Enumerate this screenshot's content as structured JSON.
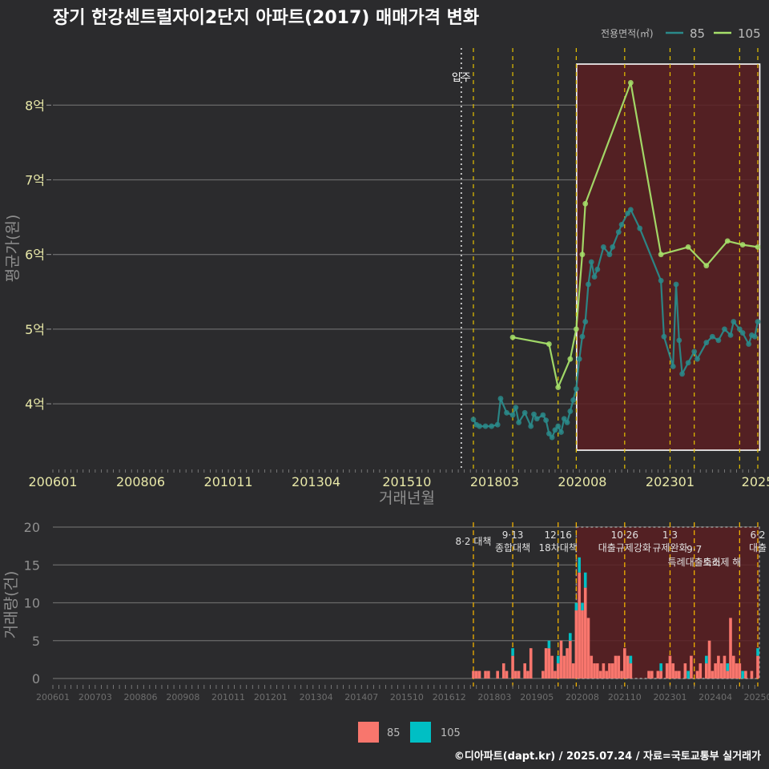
{
  "title": "장기 한강센트럴자이2단지 아파트(2017) 매매가격 변화",
  "credit": "©디아파트(dapt.kr) / 2025.07.24 / 자료=국토교통부 실거래가",
  "colors": {
    "background": "#2b2b2d",
    "s85_line": "#2a8a8a",
    "s105_line": "#a6e06a",
    "bar85": "#f8766d",
    "bar105": "#00bfc4",
    "policy": "#e6c200",
    "highlight": "#5a1e22"
  },
  "chart_data": [
    {
      "type": "line",
      "title": "장기 한강센트럴자이2단지 아파트(2017) 매매가격 변화",
      "xlabel": "거래년월",
      "ylabel": "평균가(원)",
      "x_ticks": [
        "200601",
        "200806",
        "201011",
        "201304",
        "201510",
        "201803",
        "202008",
        "202301",
        "2025"
      ],
      "y_ticks": [
        "4억",
        "5억",
        "6억",
        "7억",
        "8억"
      ],
      "ylim_eok": [
        3.1,
        8.7
      ],
      "xlim": [
        "2006-01",
        "2025-06"
      ],
      "legend_title": "전용면적(㎡)",
      "legend_position": "top-right",
      "move_in": {
        "label": "입주",
        "x": "2017-04"
      },
      "highlight_range": [
        "2020-06",
        "2025-06"
      ],
      "policy_dates": [
        "2017-08",
        "2018-09",
        "2019-12",
        "2020-06",
        "2021-10",
        "2023-01",
        "2023-09",
        "2024-12",
        "2025-06"
      ],
      "series": [
        {
          "name": "85",
          "points": [
            [
              "2017-08",
              3.79
            ],
            [
              "2017-09",
              3.72
            ],
            [
              "2017-10",
              3.7
            ],
            [
              "2017-12",
              3.7
            ],
            [
              "2018-02",
              3.7
            ],
            [
              "2018-04",
              3.72
            ],
            [
              "2018-05",
              4.07
            ],
            [
              "2018-07",
              3.88
            ],
            [
              "2018-09",
              3.85
            ],
            [
              "2018-10",
              3.95
            ],
            [
              "2018-11",
              3.75
            ],
            [
              "2019-01",
              3.88
            ],
            [
              "2019-03",
              3.7
            ],
            [
              "2019-04",
              3.86
            ],
            [
              "2019-05",
              3.8
            ],
            [
              "2019-07",
              3.85
            ],
            [
              "2019-08",
              3.78
            ],
            [
              "2019-09",
              3.6
            ],
            [
              "2019-10",
              3.55
            ],
            [
              "2019-11",
              3.65
            ],
            [
              "2019-12",
              3.7
            ],
            [
              "2020-01",
              3.62
            ],
            [
              "2020-02",
              3.8
            ],
            [
              "2020-03",
              3.75
            ],
            [
              "2020-04",
              3.9
            ],
            [
              "2020-05",
              4.05
            ],
            [
              "2020-06",
              4.2
            ],
            [
              "2020-07",
              4.6
            ],
            [
              "2020-08",
              4.9
            ],
            [
              "2020-09",
              5.1
            ],
            [
              "2020-10",
              5.6
            ],
            [
              "2020-11",
              5.9
            ],
            [
              "2020-12",
              5.7
            ],
            [
              "2021-01",
              5.8
            ],
            [
              "2021-03",
              6.1
            ],
            [
              "2021-05",
              6.0
            ],
            [
              "2021-06",
              6.1
            ],
            [
              "2021-08",
              6.3
            ],
            [
              "2021-09",
              6.4
            ],
            [
              "2021-11",
              6.55
            ],
            [
              "2021-12",
              6.6
            ],
            [
              "2022-03",
              6.35
            ],
            [
              "2022-10",
              5.65
            ],
            [
              "2022-11",
              4.9
            ],
            [
              "2023-02",
              4.5
            ],
            [
              "2023-03",
              5.6
            ],
            [
              "2023-04",
              4.85
            ],
            [
              "2023-05",
              4.4
            ],
            [
              "2023-07",
              4.55
            ],
            [
              "2023-09",
              4.7
            ],
            [
              "2023-10",
              4.6
            ],
            [
              "2024-01",
              4.82
            ],
            [
              "2024-03",
              4.9
            ],
            [
              "2024-05",
              4.85
            ],
            [
              "2024-07",
              5.0
            ],
            [
              "2024-09",
              4.92
            ],
            [
              "2024-10",
              5.1
            ],
            [
              "2024-12",
              5.0
            ],
            [
              "2025-01",
              4.95
            ],
            [
              "2025-03",
              4.8
            ],
            [
              "2025-04",
              4.92
            ],
            [
              "2025-05",
              4.9
            ],
            [
              "2025-06",
              5.1
            ]
          ]
        },
        {
          "name": "105",
          "points": [
            [
              "2018-09",
              4.89
            ],
            [
              "2019-09",
              4.8
            ],
            [
              "2019-12",
              4.22
            ],
            [
              "2020-04",
              4.6
            ],
            [
              "2020-06",
              5.0
            ],
            [
              "2020-08",
              6.0
            ],
            [
              "2020-09",
              6.68
            ],
            [
              "2021-12",
              8.3
            ],
            [
              "2022-10",
              6.0
            ],
            [
              "2023-07",
              6.1
            ],
            [
              "2024-01",
              5.85
            ],
            [
              "2024-08",
              6.18
            ],
            [
              "2025-01",
              6.13
            ],
            [
              "2025-06",
              6.1
            ]
          ]
        }
      ]
    },
    {
      "type": "bar",
      "ylabel": "거래량(건)",
      "ylim": [
        0,
        20
      ],
      "y_ticks": [
        "0",
        "5",
        "10",
        "15",
        "20"
      ],
      "x_ticks": [
        "200601",
        "200703",
        "200806",
        "200908",
        "201011",
        "201201",
        "201304",
        "201407",
        "201510",
        "201612",
        "201803",
        "201905",
        "202008",
        "202110",
        "202301",
        "202404",
        "20250"
      ],
      "policies": [
        {
          "date": "2017-08",
          "label": "8·2 대책"
        },
        {
          "date": "2018-09",
          "label": "9·13\n종합대책"
        },
        {
          "date": "2019-12",
          "label": "12·16\n18차대책"
        },
        {
          "date": "2020-06",
          "label": ""
        },
        {
          "date": "2021-10",
          "label": "10·26\n대출규제강화"
        },
        {
          "date": "2023-01",
          "label": "1·3\n규제완화"
        },
        {
          "date": "2023-09",
          "label": "9·7\n특례대출축소"
        },
        {
          "date": "2024-12",
          "label": "토허제 해"
        },
        {
          "date": "2025-06",
          "label": "6·2\n대출"
        }
      ],
      "legend": [
        "85",
        "105"
      ],
      "series": [
        {
          "name": "85",
          "points": [
            [
              "2017-08",
              1
            ],
            [
              "2017-09",
              1
            ],
            [
              "2017-10",
              1
            ],
            [
              "2017-12",
              1
            ],
            [
              "2018-01",
              1
            ],
            [
              "2018-04",
              1
            ],
            [
              "2018-06",
              2
            ],
            [
              "2018-07",
              1
            ],
            [
              "2018-09",
              3
            ],
            [
              "2018-10",
              1
            ],
            [
              "2018-11",
              1
            ],
            [
              "2019-01",
              2
            ],
            [
              "2019-02",
              1
            ],
            [
              "2019-03",
              4
            ],
            [
              "2019-07",
              1
            ],
            [
              "2019-08",
              4
            ],
            [
              "2019-09",
              4
            ],
            [
              "2019-10",
              3
            ],
            [
              "2019-11",
              1
            ],
            [
              "2019-12",
              2
            ],
            [
              "2020-01",
              5
            ],
            [
              "2020-02",
              3
            ],
            [
              "2020-03",
              4
            ],
            [
              "2020-04",
              5
            ],
            [
              "2020-05",
              2
            ],
            [
              "2020-06",
              9
            ],
            [
              "2020-07",
              14
            ],
            [
              "2020-08",
              9
            ],
            [
              "2020-09",
              12
            ],
            [
              "2020-10",
              8
            ],
            [
              "2020-11",
              3
            ],
            [
              "2020-12",
              2
            ],
            [
              "2021-01",
              2
            ],
            [
              "2021-02",
              1
            ],
            [
              "2021-03",
              2
            ],
            [
              "2021-04",
              1
            ],
            [
              "2021-05",
              2
            ],
            [
              "2021-06",
              2
            ],
            [
              "2021-07",
              3
            ],
            [
              "2021-08",
              3
            ],
            [
              "2021-09",
              1
            ],
            [
              "2021-10",
              4
            ],
            [
              "2021-11",
              3
            ],
            [
              "2021-12",
              2
            ],
            [
              "2022-06",
              1
            ],
            [
              "2022-07",
              1
            ],
            [
              "2022-09",
              1
            ],
            [
              "2022-10",
              1
            ],
            [
              "2022-12",
              2
            ],
            [
              "2023-01",
              3
            ],
            [
              "2023-02",
              2
            ],
            [
              "2023-03",
              1
            ],
            [
              "2023-04",
              1
            ],
            [
              "2023-06",
              2
            ],
            [
              "2023-08",
              3
            ],
            [
              "2023-10",
              1
            ],
            [
              "2023-11",
              2
            ],
            [
              "2024-01",
              2
            ],
            [
              "2024-02",
              5
            ],
            [
              "2024-03",
              1
            ],
            [
              "2024-04",
              2
            ],
            [
              "2024-05",
              3
            ],
            [
              "2024-06",
              2
            ],
            [
              "2024-07",
              3
            ],
            [
              "2024-08",
              1
            ],
            [
              "2024-09",
              8
            ],
            [
              "2024-10",
              3
            ],
            [
              "2024-11",
              2
            ],
            [
              "2024-12",
              2
            ],
            [
              "2025-02",
              1
            ],
            [
              "2025-04",
              1
            ],
            [
              "2025-06",
              3
            ]
          ]
        },
        {
          "name": "105",
          "points": [
            [
              "2018-09",
              1
            ],
            [
              "2019-09",
              1
            ],
            [
              "2019-12",
              1
            ],
            [
              "2020-04",
              1
            ],
            [
              "2020-06",
              1
            ],
            [
              "2020-07",
              2
            ],
            [
              "2020-08",
              1
            ],
            [
              "2020-09",
              2
            ],
            [
              "2021-12",
              1
            ],
            [
              "2022-10",
              1
            ],
            [
              "2023-07",
              1
            ],
            [
              "2024-01",
              1
            ],
            [
              "2024-08",
              1
            ],
            [
              "2025-01",
              1
            ],
            [
              "2025-06",
              1
            ]
          ]
        }
      ]
    }
  ]
}
